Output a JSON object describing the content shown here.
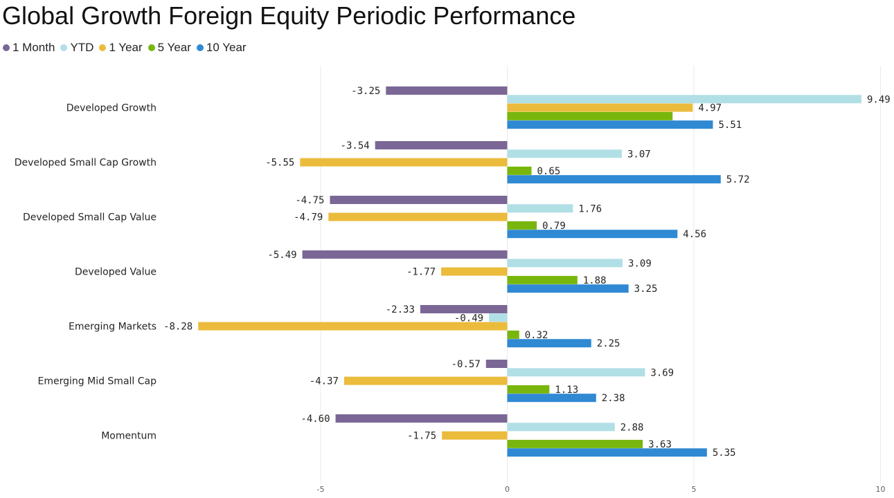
{
  "chart_data": {
    "type": "bar",
    "orientation": "horizontal",
    "title": "Global Growth Foreign Equity Periodic Performance",
    "categories": [
      "Developed Growth",
      "Developed Small Cap Growth",
      "Developed Small Cap Value",
      "Developed Value",
      "Emerging Markets",
      "Emerging Mid Small Cap",
      "Momentum"
    ],
    "series": [
      {
        "name": "1 Month",
        "color": "#7a6796",
        "values": [
          -3.25,
          -3.54,
          -4.75,
          -5.49,
          -2.33,
          -0.57,
          -4.6
        ],
        "labels": [
          "-3.25",
          "-3.54",
          "-4.75",
          "-5.49",
          "-2.33",
          "-0.57",
          "-4.60"
        ]
      },
      {
        "name": "YTD",
        "color": "#b1dfe6",
        "values": [
          9.49,
          3.07,
          1.76,
          3.09,
          -0.49,
          3.69,
          2.88
        ],
        "labels": [
          "9.49",
          "3.07",
          "1.76",
          "3.09",
          "-0.49",
          "3.69",
          "2.88"
        ]
      },
      {
        "name": "1 Year",
        "color": "#ebbb3c",
        "values": [
          4.97,
          -5.55,
          -4.79,
          -1.77,
          -8.28,
          -4.37,
          -1.75
        ],
        "labels": [
          "4.97",
          "-5.55",
          "-4.79",
          "-1.77",
          "-8.28",
          "-4.37",
          "-1.75"
        ]
      },
      {
        "name": "5 Year",
        "color": "#79b60d",
        "values": [
          4.43,
          0.65,
          0.79,
          1.88,
          0.32,
          1.13,
          3.63
        ],
        "labels": [
          "",
          "0.65",
          "0.79",
          "1.88",
          "0.32",
          "1.13",
          "3.63"
        ]
      },
      {
        "name": "10 Year",
        "color": "#2f89d3",
        "values": [
          5.51,
          5.72,
          4.56,
          3.25,
          2.25,
          2.38,
          5.35
        ],
        "labels": [
          "5.51",
          "5.72",
          "4.56",
          "3.25",
          "2.25",
          "2.38",
          "5.35"
        ]
      }
    ],
    "xlim": [
      -10,
      10
    ],
    "xticks": [
      -5,
      0,
      5,
      10
    ],
    "xtick_labels": [
      "-5",
      "0",
      "5",
      "10"
    ],
    "grid": true,
    "legend_position": "top-left",
    "xlabel": "",
    "ylabel": ""
  }
}
